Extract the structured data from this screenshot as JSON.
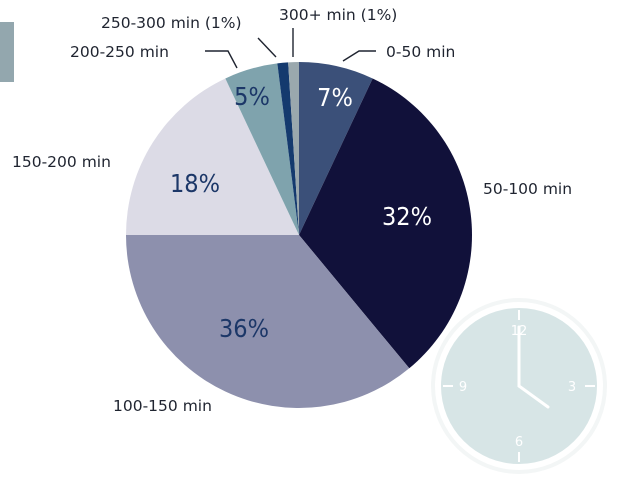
{
  "chart_data": {
    "type": "pie",
    "start_angle_deg": 0,
    "direction": "clockwise",
    "slices": [
      {
        "label": "0-50 min",
        "value": 7,
        "display": "7%",
        "color": "#3b5079",
        "text_color": "#ffffff"
      },
      {
        "label": "50-100 min",
        "value": 32,
        "display": "32%",
        "color": "#11113a",
        "text_color": "#ffffff"
      },
      {
        "label": "100-150 min",
        "value": 36,
        "display": "36%",
        "color": "#8d90ad",
        "text_color": "#1c3768"
      },
      {
        "label": "150-200 min",
        "value": 18,
        "display": "18%",
        "color": "#dcdbe6",
        "text_color": "#1c3768"
      },
      {
        "label": "200-250 min",
        "value": 5,
        "display": "5%",
        "color": "#7fa3ad",
        "text_color": "#1c3768"
      },
      {
        "label": "250-300 min (1%)",
        "value": 1,
        "display": "",
        "color": "#143a6e",
        "text_color": "#ffffff"
      },
      {
        "label": "300+ min (1%)",
        "value": 1,
        "display": "",
        "color": "#9aa8ad",
        "text_color": "#ffffff"
      }
    ]
  },
  "clock": {
    "numbers": [
      "12",
      "3",
      "6",
      "9"
    ],
    "face_color": "#d6e5e6",
    "rim_color": "#f1f5f5"
  },
  "decor": {
    "corner_block_color": "#93a7ae"
  }
}
